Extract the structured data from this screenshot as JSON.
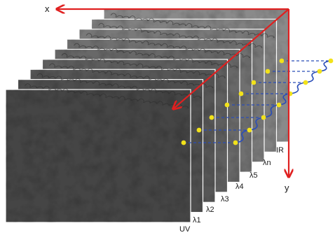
{
  "axes": {
    "x_label": "x",
    "y_label": "y",
    "axis_color": "#e02020"
  },
  "bands": [
    {
      "label": "UV"
    },
    {
      "label": "λ1"
    },
    {
      "label": "λ2"
    },
    {
      "label": "λ3"
    },
    {
      "label": "λ4"
    },
    {
      "label": "λ5"
    },
    {
      "label": "λn"
    },
    {
      "label": "IR"
    }
  ],
  "spectrum_plot": {
    "point_color": "#f2e21a",
    "curve_color": "#2a4db8"
  },
  "layers": {
    "count": 9,
    "front_color": "#454545",
    "back_color": "#8a8a8a"
  }
}
